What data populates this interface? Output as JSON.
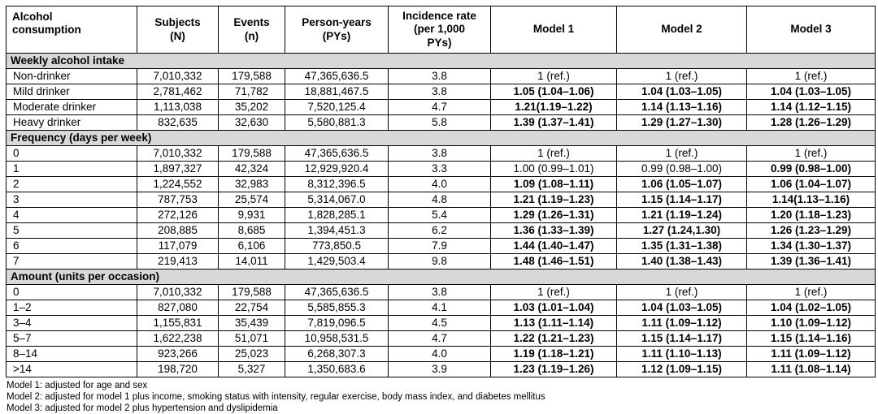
{
  "table": {
    "columns": [
      "Alcohol\nconsumption",
      "Subjects\n(N)",
      "Events\n(n)",
      "Person-years\n(PYs)",
      "Incidence rate\n(per 1,000\nPYs)",
      "Model 1",
      "Model 2",
      "Model 3"
    ],
    "sections": [
      {
        "title": "Weekly alcohol intake",
        "rows": [
          {
            "label": "Non-drinker",
            "subjects": "7,010,332",
            "events": "179,588",
            "py": "47,365,636.5",
            "ir": "3.8",
            "m1": "1 (ref.)",
            "m2": "1 (ref.)",
            "m3": "1 (ref.)",
            "b": [
              false,
              false,
              false
            ]
          },
          {
            "label": "Mild drinker",
            "subjects": "2,781,462",
            "events": "71,782",
            "py": "18,881,467.5",
            "ir": "3.8",
            "m1": "1.05 (1.04–1.06)",
            "m2": "1.04 (1.03–1.05)",
            "m3": "1.04 (1.03–1.05)",
            "b": [
              true,
              true,
              true
            ]
          },
          {
            "label": "Moderate drinker",
            "subjects": "1,113,038",
            "events": "35,202",
            "py": "7,520,125.4",
            "ir": "4.7",
            "m1": "1.21(1.19–1.22)",
            "m2": "1.14 (1.13–1.16)",
            "m3": "1.14 (1.12–1.15)",
            "b": [
              true,
              true,
              true
            ]
          },
          {
            "label": "Heavy drinker",
            "subjects": "832,635",
            "events": "32,630",
            "py": "5,580,881.3",
            "ir": "5.8",
            "m1": "1.39 (1.37–1.41)",
            "m2": "1.29 (1.27–1.30)",
            "m3": "1.28 (1.26–1.29)",
            "b": [
              true,
              true,
              true
            ]
          }
        ]
      },
      {
        "title": "Frequency (days per week)",
        "rows": [
          {
            "label": "0",
            "subjects": "7,010,332",
            "events": "179,588",
            "py": "47,365,636.5",
            "ir": "3.8",
            "m1": "1 (ref.)",
            "m2": "1 (ref.)",
            "m3": "1 (ref.)",
            "b": [
              false,
              false,
              false
            ]
          },
          {
            "label": "1",
            "subjects": "1,897,327",
            "events": "42,324",
            "py": "12,929,920.4",
            "ir": "3.3",
            "m1": "1.00 (0.99–1.01)",
            "m2": "0.99 (0.98–1.00)",
            "m3": "0.99 (0.98–1.00)",
            "b": [
              false,
              false,
              true
            ]
          },
          {
            "label": "2",
            "subjects": "1,224,552",
            "events": "32,983",
            "py": "8,312,396.5",
            "ir": "4.0",
            "m1": "1.09 (1.08–1.11)",
            "m2": "1.06 (1.05–1.07)",
            "m3": "1.06 (1.04–1.07)",
            "b": [
              true,
              true,
              true
            ]
          },
          {
            "label": "3",
            "subjects": "787,753",
            "events": "25,574",
            "py": "5,314,067.0",
            "ir": "4.8",
            "m1": "1.21 (1.19–1.23)",
            "m2": "1.15 (1.14–1.17)",
            "m3": "1.14(1.13–1.16)",
            "b": [
              true,
              true,
              true
            ]
          },
          {
            "label": "4",
            "subjects": "272,126",
            "events": "9,931",
            "py": "1,828,285.1",
            "ir": "5.4",
            "m1": "1.29 (1.26–1.31)",
            "m2": "1.21 (1.19–1.24)",
            "m3": "1.20 (1.18–1.23)",
            "b": [
              true,
              true,
              true
            ]
          },
          {
            "label": "5",
            "subjects": "208,885",
            "events": "8,685",
            "py": "1,394,451.3",
            "ir": "6.2",
            "m1": "1.36 (1.33–1.39)",
            "m2": "1.27 (1.24,1.30)",
            "m3": "1.26 (1.23–1.29)",
            "b": [
              true,
              true,
              true
            ]
          },
          {
            "label": "6",
            "subjects": "117,079",
            "events": "6,106",
            "py": "773,850.5",
            "ir": "7.9",
            "m1": "1.44 (1.40–1.47)",
            "m2": "1.35 (1.31–1.38)",
            "m3": "1.34 (1.30–1.37)",
            "b": [
              true,
              true,
              true
            ]
          },
          {
            "label": "7",
            "subjects": "219,413",
            "events": "14,011",
            "py": "1,429,503.4",
            "ir": "9.8",
            "m1": "1.48 (1.46–1.51)",
            "m2": "1.40 (1.38–1.43)",
            "m3": "1.39 (1.36–1.41)",
            "b": [
              true,
              true,
              true
            ]
          }
        ]
      },
      {
        "title": "Amount (units per occasion)",
        "rows": [
          {
            "label": "0",
            "subjects": "7,010,332",
            "events": "179,588",
            "py": "47,365,636.5",
            "ir": "3.8",
            "m1": "1 (ref.)",
            "m2": "1 (ref.)",
            "m3": "1 (ref.)",
            "b": [
              false,
              false,
              false
            ]
          },
          {
            "label": "1–2",
            "subjects": "827,080",
            "events": "22,754",
            "py": "5,585,855.3",
            "ir": "4.1",
            "m1": "1.03 (1.01–1.04)",
            "m2": "1.04 (1.03–1.05)",
            "m3": "1.04 (1.02–1.05)",
            "b": [
              true,
              true,
              true
            ]
          },
          {
            "label": "3–4",
            "subjects": "1,155,831",
            "events": "35,439",
            "py": "7,819,096.5",
            "ir": "4.5",
            "m1": "1.13 (1.11–1.14)",
            "m2": "1.11 (1.09–1.12)",
            "m3": "1.10 (1.09–1.12)",
            "b": [
              true,
              true,
              true
            ]
          },
          {
            "label": "5–7",
            "subjects": "1,622,238",
            "events": "51,071",
            "py": "10,958,531.5",
            "ir": "4.7",
            "m1": "1.22 (1.21–1.23)",
            "m2": "1.15 (1.14–1.17)",
            "m3": "1.15 (1.14–1.16)",
            "b": [
              true,
              true,
              true
            ]
          },
          {
            "label": "8–14",
            "subjects": "923,266",
            "events": "25,023",
            "py": "6,268,307.3",
            "ir": "4.0",
            "m1": "1.19 (1.18–1.21)",
            "m2": "1.11 (1.10–1.13)",
            "m3": "1.11 (1.09–1.12)",
            "b": [
              true,
              true,
              true
            ]
          },
          {
            "label": ">14",
            "subjects": "198,720",
            "events": "5,327",
            "py": "1,350,683.6",
            "ir": "3.9",
            "m1": "1.23 (1.19–1.26)",
            "m2": "1.12 (1.09–1.15)",
            "m3": "1.11 (1.08–1.14)",
            "b": [
              true,
              true,
              true
            ]
          }
        ]
      }
    ],
    "footnotes": [
      "Model 1: adjusted for age and sex",
      "Model 2: adjusted for model 1 plus income, smoking status with intensity, regular exercise, body mass index, and diabetes mellitus",
      "Model 3: adjusted for model 2 plus hypertension and dyslipidemia"
    ],
    "colors": {
      "section_band": "#d8d8d8",
      "border": "#000000",
      "background": "#ffffff",
      "text": "#000000"
    }
  }
}
